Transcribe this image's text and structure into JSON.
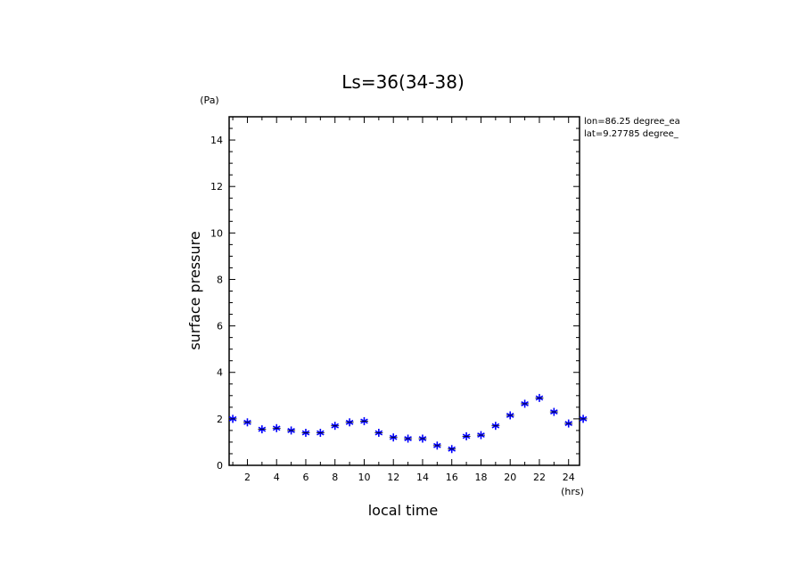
{
  "chart_data": {
    "type": "scatter",
    "title": "Ls=36(34-38)",
    "xlabel": "local time",
    "ylabel": "surface pressure",
    "x_unit": "(hrs)",
    "y_unit": "(Pa)",
    "xlim": [
      0.75,
      24.75
    ],
    "ylim": [
      0,
      15
    ],
    "x_ticks": [
      2,
      4,
      6,
      8,
      10,
      12,
      14,
      16,
      18,
      20,
      22,
      24
    ],
    "y_ticks": [
      0,
      2,
      4,
      6,
      8,
      10,
      12,
      14
    ],
    "annotations": [
      "lon=86.25 degree_ea",
      "lat=9.27785 degree_"
    ],
    "marker": "asterisk",
    "marker_color": "#0000ff",
    "grid": false,
    "series": [
      {
        "x": [
          1,
          2,
          3,
          4,
          5,
          6,
          7,
          8,
          9,
          10,
          11,
          12,
          13,
          14,
          15,
          16,
          17,
          18,
          19,
          20,
          21,
          22,
          23,
          24,
          25
        ],
        "y": [
          2.0,
          1.85,
          1.55,
          1.6,
          1.5,
          1.4,
          1.4,
          1.7,
          1.85,
          1.9,
          1.4,
          1.2,
          1.15,
          1.15,
          0.85,
          0.7,
          1.25,
          1.3,
          1.7,
          2.15,
          2.65,
          2.9,
          2.3,
          1.8,
          2.0
        ]
      }
    ]
  }
}
